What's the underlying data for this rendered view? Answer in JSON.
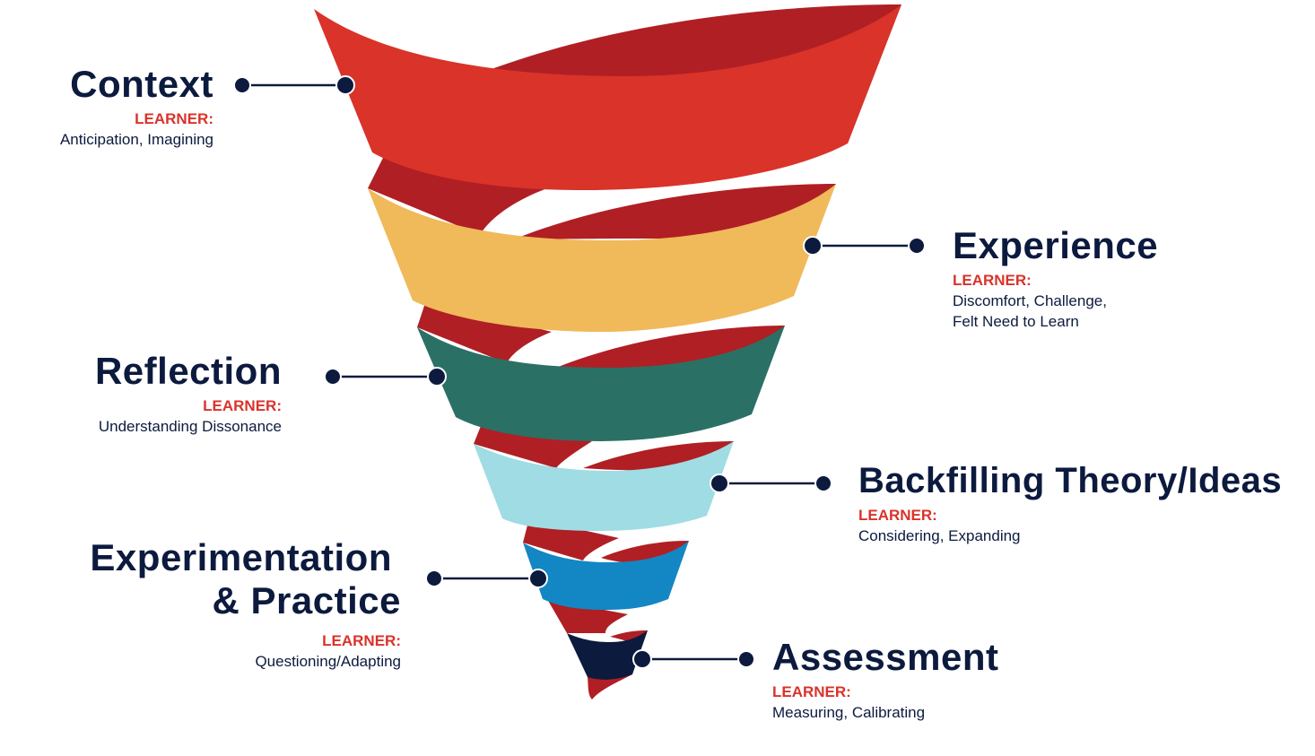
{
  "colors": {
    "ribbon_back": "#b01f24",
    "navy": "#0c1a3e",
    "learner": "#d9332a"
  },
  "stages": [
    {
      "title": "Context",
      "learner": "LEARNER:",
      "desc": "Anticipation, Imagining",
      "color": "#d9332a"
    },
    {
      "title": "Experience",
      "learner": "LEARNER:",
      "desc": "Discomfort, Challenge,",
      "desc2": "Felt Need to Learn",
      "color": "#f0b95a"
    },
    {
      "title": "Reflection",
      "learner": "LEARNER:",
      "desc": "Understanding Dissonance",
      "color": "#2b7065"
    },
    {
      "title": "Backfilling Theory/Ideas",
      "learner": "LEARNER:",
      "desc": "Considering, Expanding",
      "color": "#a0dce3"
    },
    {
      "title": "Experimentation",
      "title2": "& Practice",
      "learner": "LEARNER:",
      "desc": "Questioning/Adapting",
      "color": "#1287c4"
    },
    {
      "title": "Assessment",
      "learner": "LEARNER:",
      "desc": "Measuring, Calibrating",
      "color": "#0c1a3e"
    }
  ]
}
